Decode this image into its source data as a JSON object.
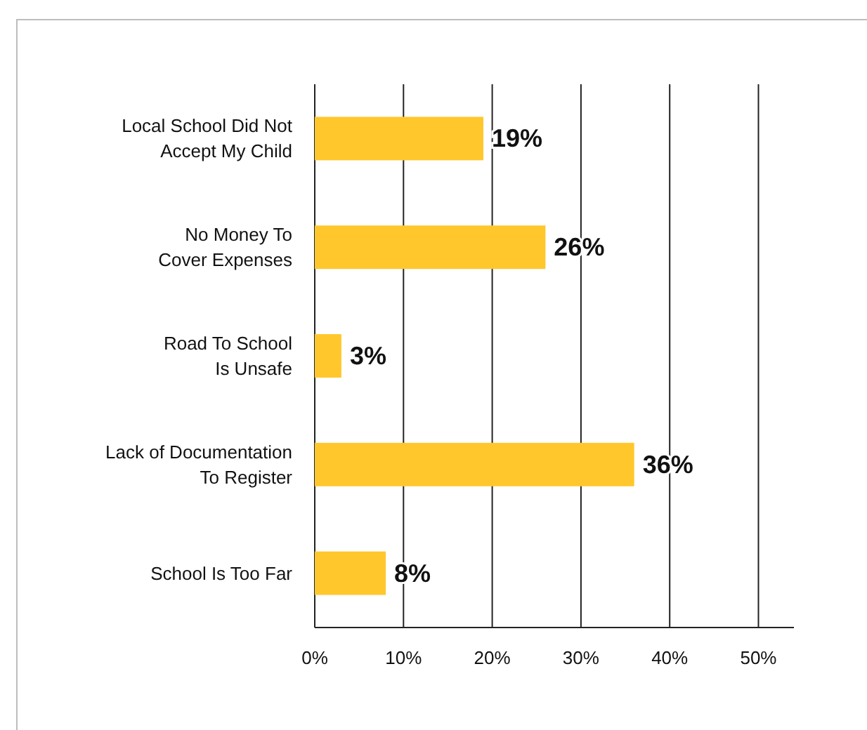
{
  "chart_data": {
    "type": "bar",
    "orientation": "horizontal",
    "categories": [
      "Local School Did Not\nAccept My Child",
      "No Money To\nCover Expenses",
      "Road To School\nIs Unsafe",
      "Lack of Documentation\nTo Register",
      "School Is Too Far"
    ],
    "values": [
      19,
      26,
      3,
      36,
      8
    ],
    "value_labels": [
      "19%",
      "26%",
      "3%",
      "36%",
      "8%"
    ],
    "color": "#ffc72c",
    "xlim": [
      0,
      54
    ],
    "xticks": [
      {
        "value": 0,
        "label": "0%"
      },
      {
        "value": 10,
        "label": "10%"
      },
      {
        "value": 20,
        "label": "20%"
      },
      {
        "value": 30,
        "label": "30%"
      },
      {
        "value": 40,
        "label": "40%"
      },
      {
        "value": 50,
        "label": "50%"
      }
    ],
    "grid": "x"
  }
}
